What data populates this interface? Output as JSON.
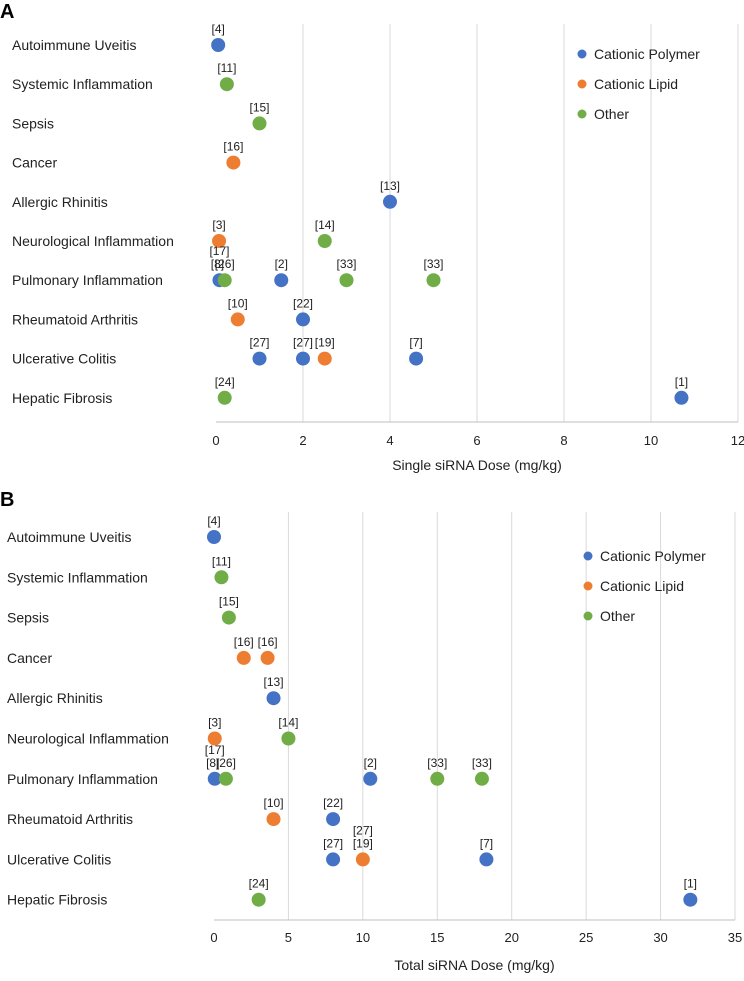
{
  "colors": {
    "Cationic Polymer": "#4472c4",
    "Cationic Lipid": "#ed7d31",
    "Other": "#70ad47"
  },
  "chart_data": [
    {
      "panel": "A",
      "type": "scatter",
      "xlabel": "Single siRNA Dose (mg/kg)",
      "ylabel": "",
      "xlim": [
        0,
        12
      ],
      "xticks": [
        0,
        2,
        4,
        6,
        8,
        10,
        12
      ],
      "grid": true,
      "legend_position": "top-right",
      "legend": [
        "Cationic Polymer",
        "Cationic Lipid",
        "Other"
      ],
      "categories": [
        "Autoimmune Uveitis",
        "Systemic Inflammation",
        "Sepsis",
        "Cancer",
        "Allergic Rhinitis",
        "Neurological Inflammation",
        "Pulmonary Inflammation",
        "Rheumatoid Arthritis",
        "Ulcerative Colitis",
        "Hepatic Fibrosis"
      ],
      "points": [
        {
          "category": "Autoimmune Uveitis",
          "x": 0.05,
          "series": "Cationic Polymer",
          "label": "[4]"
        },
        {
          "category": "Systemic Inflammation",
          "x": 0.25,
          "series": "Other",
          "label": "[11]"
        },
        {
          "category": "Sepsis",
          "x": 1.0,
          "series": "Other",
          "label": "[15]"
        },
        {
          "category": "Cancer",
          "x": 0.4,
          "series": "Cationic Lipid",
          "label": "[16]"
        },
        {
          "category": "Allergic Rhinitis",
          "x": 4.0,
          "series": "Cationic Polymer",
          "label": "[13]"
        },
        {
          "category": "Neurological Inflammation",
          "x": 0.07,
          "series": "Cationic Lipid",
          "label": "[3]"
        },
        {
          "category": "Neurological Inflammation",
          "x": 2.5,
          "series": "Other",
          "label": "[14]"
        },
        {
          "category": "Pulmonary Inflammation",
          "x": 0.08,
          "series": "Cationic Polymer",
          "label": "[17]\n[8]"
        },
        {
          "category": "Pulmonary Inflammation",
          "x": 0.2,
          "series": "Other",
          "label": "[26]"
        },
        {
          "category": "Pulmonary Inflammation",
          "x": 1.5,
          "series": "Cationic Polymer",
          "label": "[2]"
        },
        {
          "category": "Pulmonary Inflammation",
          "x": 3.0,
          "series": "Other",
          "label": "[33]"
        },
        {
          "category": "Pulmonary Inflammation",
          "x": 5.0,
          "series": "Other",
          "label": "[33]"
        },
        {
          "category": "Rheumatoid Arthritis",
          "x": 0.5,
          "series": "Cationic Lipid",
          "label": "[10]"
        },
        {
          "category": "Rheumatoid Arthritis",
          "x": 2.0,
          "series": "Cationic Polymer",
          "label": "[22]"
        },
        {
          "category": "Ulcerative Colitis",
          "x": 1.0,
          "series": "Cationic Polymer",
          "label": "[27]"
        },
        {
          "category": "Ulcerative Colitis",
          "x": 2.0,
          "series": "Cationic Polymer",
          "label": "[27]"
        },
        {
          "category": "Ulcerative Colitis",
          "x": 2.5,
          "series": "Cationic Lipid",
          "label": "[19]"
        },
        {
          "category": "Ulcerative Colitis",
          "x": 4.6,
          "series": "Cationic Polymer",
          "label": "[7]"
        },
        {
          "category": "Hepatic Fibrosis",
          "x": 0.2,
          "series": "Other",
          "label": "[24]"
        },
        {
          "category": "Hepatic Fibrosis",
          "x": 10.7,
          "series": "Cationic Polymer",
          "label": "[1]"
        }
      ]
    },
    {
      "panel": "B",
      "type": "scatter",
      "xlabel": "Total siRNA Dose (mg/kg)",
      "ylabel": "",
      "xlim": [
        0,
        35
      ],
      "xticks": [
        0,
        5,
        10,
        15,
        20,
        25,
        30,
        35
      ],
      "grid": true,
      "legend_position": "top-right",
      "legend": [
        "Cationic Polymer",
        "Cationic Lipid",
        "Other"
      ],
      "categories": [
        "Autoimmune Uveitis",
        "Systemic Inflammation",
        "Sepsis",
        "Cancer",
        "Allergic Rhinitis",
        "Neurological Inflammation",
        "Pulmonary Inflammation",
        "Rheumatoid Arthritis",
        "Ulcerative Colitis",
        "Hepatic Fibrosis"
      ],
      "points": [
        {
          "category": "Autoimmune Uveitis",
          "x": 0.0,
          "series": "Cationic Polymer",
          "label": "[4]"
        },
        {
          "category": "Systemic Inflammation",
          "x": 0.5,
          "series": "Other",
          "label": "[11]"
        },
        {
          "category": "Sepsis",
          "x": 1.0,
          "series": "Other",
          "label": "[15]"
        },
        {
          "category": "Cancer",
          "x": 2.0,
          "series": "Cationic Lipid",
          "label": "[16]"
        },
        {
          "category": "Cancer",
          "x": 3.6,
          "series": "Cationic Lipid",
          "label": "[16]"
        },
        {
          "category": "Allergic Rhinitis",
          "x": 4.0,
          "series": "Cationic Polymer",
          "label": "[13]"
        },
        {
          "category": "Neurological Inflammation",
          "x": 0.05,
          "series": "Cationic Lipid",
          "label": "[3]"
        },
        {
          "category": "Neurological Inflammation",
          "x": 5.0,
          "series": "Other",
          "label": "[14]"
        },
        {
          "category": "Pulmonary Inflammation",
          "x": 0.05,
          "series": "Cationic Polymer",
          "label": "[17]\n[8]"
        },
        {
          "category": "Pulmonary Inflammation",
          "x": 0.8,
          "series": "Other",
          "label": "[26]"
        },
        {
          "category": "Pulmonary Inflammation",
          "x": 10.5,
          "series": "Cationic Polymer",
          "label": "[2]"
        },
        {
          "category": "Pulmonary Inflammation",
          "x": 15.0,
          "series": "Other",
          "label": "[33]"
        },
        {
          "category": "Pulmonary Inflammation",
          "x": 18.0,
          "series": "Other",
          "label": "[33]"
        },
        {
          "category": "Rheumatoid Arthritis",
          "x": 4.0,
          "series": "Cationic Lipid",
          "label": "[10]"
        },
        {
          "category": "Rheumatoid Arthritis",
          "x": 8.0,
          "series": "Cationic Polymer",
          "label": "[22]"
        },
        {
          "category": "Ulcerative Colitis",
          "x": 8.0,
          "series": "Cationic Polymer",
          "label": "[27]"
        },
        {
          "category": "Ulcerative Colitis",
          "x": 10.0,
          "series": "Cationic Lipid",
          "label": "[27]\n[19]"
        },
        {
          "category": "Ulcerative Colitis",
          "x": 18.3,
          "series": "Cationic Polymer",
          "label": "[7]"
        },
        {
          "category": "Hepatic Fibrosis",
          "x": 3.0,
          "series": "Other",
          "label": "[24]"
        },
        {
          "category": "Hepatic Fibrosis",
          "x": 32.0,
          "series": "Cationic Polymer",
          "label": "[1]"
        }
      ]
    }
  ]
}
